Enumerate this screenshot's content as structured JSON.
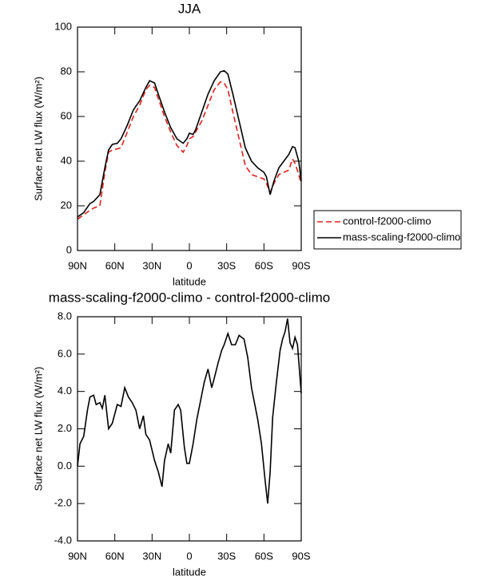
{
  "chart_data": [
    {
      "type": "line",
      "title": "JJA",
      "xlabel": "latitude",
      "ylabel": "Surface net LW flux (W/m²)",
      "x": [
        90,
        85,
        80,
        77,
        72,
        68,
        65,
        62,
        58,
        55,
        50,
        45,
        40,
        35,
        32,
        28,
        25,
        20,
        15,
        10,
        5,
        2,
        0,
        -3,
        -5,
        -10,
        -15,
        -20,
        -25,
        -28,
        -31,
        -35,
        -40,
        -45,
        -50,
        -55,
        -60,
        -62,
        -65,
        -68,
        -72,
        -76,
        -80,
        -83,
        -85,
        -88,
        -90
      ],
      "series": [
        {
          "name": "control-f2000-climo",
          "color": "#e0201b",
          "dash": "dashed",
          "values": [
            14,
            16,
            18,
            19,
            20,
            35,
            44,
            45,
            45.5,
            46,
            53,
            60,
            65,
            72,
            74,
            73,
            68,
            60,
            53,
            47,
            44,
            47,
            50,
            51,
            53,
            58,
            65,
            72,
            75.5,
            75,
            72,
            62,
            50,
            38,
            34,
            33,
            32,
            30,
            26,
            30,
            34,
            35,
            36,
            41,
            39,
            34,
            30
          ]
        },
        {
          "name": "mass-scaling-f2000-climo",
          "color": "#000000",
          "dash": "solid",
          "values": [
            15,
            17,
            21,
            22,
            25,
            37,
            45,
            47.5,
            48,
            50,
            56,
            63,
            67,
            73,
            76,
            75,
            70,
            62,
            55,
            50,
            48,
            50,
            52.5,
            52,
            54,
            62,
            70,
            76,
            80,
            80.5,
            79,
            70,
            58,
            46,
            40,
            37,
            35,
            33,
            25,
            31,
            37,
            40,
            43,
            46.5,
            46,
            40,
            31
          ]
        }
      ],
      "xlim": [
        90,
        -90
      ],
      "xticks": [
        {
          "value": 90,
          "label": "90N"
        },
        {
          "value": 60,
          "label": "60N"
        },
        {
          "value": 30,
          "label": "30N"
        },
        0,
        {
          "value": -30,
          "label": "30S"
        },
        {
          "value": -60,
          "label": "60S"
        },
        {
          "value": -90,
          "label": "90S"
        }
      ],
      "ylim": [
        0,
        100
      ],
      "yticks": [
        0,
        20,
        40,
        60,
        80,
        100
      ],
      "legend": "right"
    },
    {
      "type": "line",
      "title": "mass-scaling-f2000-climo - control-f2000-climo",
      "xlabel": "latitude",
      "ylabel": "Surface net LW flux (W/m²)",
      "x": [
        90,
        88,
        85,
        82,
        80,
        77,
        75,
        72,
        70,
        68,
        65,
        62,
        58,
        55,
        52,
        49,
        46,
        43,
        40,
        37,
        35,
        32,
        28,
        25,
        22,
        20,
        17,
        15,
        12,
        9,
        7,
        4,
        2,
        0,
        -3,
        -6,
        -9,
        -12,
        -15,
        -18,
        -20,
        -23,
        -26,
        -28,
        -31,
        -34,
        -37,
        -40,
        -44,
        -47,
        -50,
        -55,
        -58,
        -61,
        -63,
        -65,
        -67,
        -70,
        -73,
        -75,
        -77,
        -79,
        -81,
        -83,
        -85,
        -87,
        -90
      ],
      "series": [
        {
          "color": "#000000",
          "dash": "solid",
          "values": [
            0,
            1.2,
            1.6,
            3.0,
            3.7,
            3.8,
            3.3,
            3.4,
            3.1,
            3.8,
            2.0,
            2.3,
            3.3,
            3.2,
            4.2,
            3.7,
            3.4,
            3.0,
            2.0,
            2.7,
            1.7,
            1.4,
            0.3,
            -0.3,
            -1.1,
            0.3,
            1.2,
            0.7,
            3.0,
            3.3,
            3.0,
            1.0,
            0.15,
            0.15,
            1.2,
            2.5,
            3.5,
            4.5,
            5.2,
            4.2,
            4.7,
            5.5,
            6.2,
            6.5,
            7.1,
            6.5,
            6.5,
            7.0,
            6.8,
            5.8,
            4.2,
            2.5,
            1.2,
            -0.8,
            -2.0,
            -0.3,
            2.6,
            4.5,
            6.2,
            6.8,
            7.2,
            7.9,
            6.6,
            6.3,
            6.9,
            6.5,
            3.9
          ]
        }
      ],
      "xlim": [
        90,
        -90
      ],
      "xticks": [
        {
          "value": 90,
          "label": "90N"
        },
        {
          "value": 60,
          "label": "60N"
        },
        {
          "value": 30,
          "label": "30N"
        },
        0,
        {
          "value": -30,
          "label": "30S"
        },
        {
          "value": -60,
          "label": "60S"
        },
        {
          "value": -90,
          "label": "90S"
        }
      ],
      "ylim": [
        -4,
        8
      ],
      "yticks": [
        {
          "value": -4,
          "label": "-4.0"
        },
        {
          "value": -2,
          "label": "-2.0"
        },
        {
          "value": 0,
          "label": "0.0"
        },
        {
          "value": 2,
          "label": "2.0"
        },
        {
          "value": 4,
          "label": "4.0"
        },
        {
          "value": 6,
          "label": "6.0"
        },
        {
          "value": 8,
          "label": "8.0"
        }
      ]
    }
  ]
}
